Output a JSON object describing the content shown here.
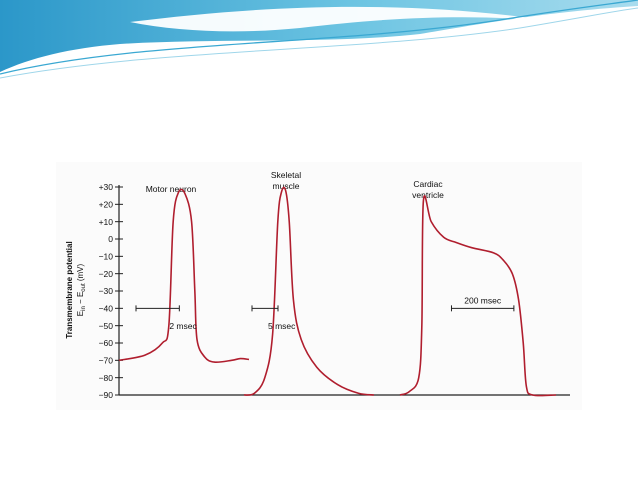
{
  "theme": {
    "accent": "#4fb8d8",
    "curve_color": "#b01e2e",
    "axis_color": "#222222"
  },
  "chart_data": {
    "type": "line",
    "ylabel_line1": "Transmembrane potential",
    "ylabel_line2": "E",
    "ylabel_sub_in": "in",
    "ylabel_minus": " − E",
    "ylabel_sub_out": "out",
    "ylabel_unit": " (mV)",
    "ylim": [
      -90,
      30
    ],
    "yticks": [
      {
        "value": 30,
        "label": "+30"
      },
      {
        "value": 20,
        "label": "+20"
      },
      {
        "value": 10,
        "label": "+10"
      },
      {
        "value": 0,
        "label": "0"
      },
      {
        "value": -10,
        "label": "−10"
      },
      {
        "value": -20,
        "label": "−20"
      },
      {
        "value": -30,
        "label": "−30"
      },
      {
        "value": -40,
        "label": "−40"
      },
      {
        "value": -50,
        "label": "−50"
      },
      {
        "value": -60,
        "label": "−60"
      },
      {
        "value": -70,
        "label": "−70"
      },
      {
        "value": -80,
        "label": "−80"
      },
      {
        "value": -90,
        "label": "−90"
      }
    ],
    "series": [
      {
        "name": "Motor neuron",
        "title_lines": [
          "Motor neuron"
        ],
        "duration_ms": 6,
        "scalebar": {
          "label": "2 msec",
          "ms": 2,
          "level_mv": -40
        },
        "points": [
          [
            0,
            -70
          ],
          [
            1.2,
            -67
          ],
          [
            2,
            -60
          ],
          [
            2.3,
            -50
          ],
          [
            2.5,
            10
          ],
          [
            2.75,
            27
          ],
          [
            3.05,
            26
          ],
          [
            3.35,
            10
          ],
          [
            3.5,
            -30
          ],
          [
            3.6,
            -58
          ],
          [
            3.95,
            -68
          ],
          [
            4.4,
            -71
          ],
          [
            5.2,
            -70
          ],
          [
            5.6,
            -69
          ],
          [
            6,
            -69.5
          ]
        ]
      },
      {
        "name": "Skeletal muscle",
        "title_lines": [
          "Skeletal",
          "muscle"
        ],
        "duration_ms": 25,
        "scalebar": {
          "label": "5 msec",
          "ms": 5,
          "level_mv": -40
        },
        "points": [
          [
            0,
            -90
          ],
          [
            2,
            -89
          ],
          [
            4,
            -80
          ],
          [
            5.5,
            -55
          ],
          [
            6.5,
            10
          ],
          [
            7.2,
            27
          ],
          [
            8,
            28
          ],
          [
            8.7,
            10
          ],
          [
            9.5,
            -35
          ],
          [
            11,
            -58
          ],
          [
            14,
            -74
          ],
          [
            18,
            -84
          ],
          [
            22,
            -89
          ],
          [
            25,
            -90
          ]
        ]
      },
      {
        "name": "Cardiac ventricle",
        "title_lines": [
          "Cardiac",
          "ventricle"
        ],
        "duration_ms": 500,
        "scalebar": {
          "label": "200 msec",
          "ms": 200,
          "level_mv": -40
        },
        "points": [
          [
            0,
            -90
          ],
          [
            30,
            -88
          ],
          [
            60,
            -80
          ],
          [
            70,
            -50
          ],
          [
            75,
            22
          ],
          [
            100,
            10
          ],
          [
            140,
            1
          ],
          [
            180,
            -2
          ],
          [
            230,
            -5
          ],
          [
            300,
            -8
          ],
          [
            330,
            -12
          ],
          [
            360,
            -20
          ],
          [
            380,
            -35
          ],
          [
            395,
            -60
          ],
          [
            405,
            -85
          ],
          [
            425,
            -90
          ],
          [
            500,
            -90
          ]
        ]
      }
    ]
  }
}
